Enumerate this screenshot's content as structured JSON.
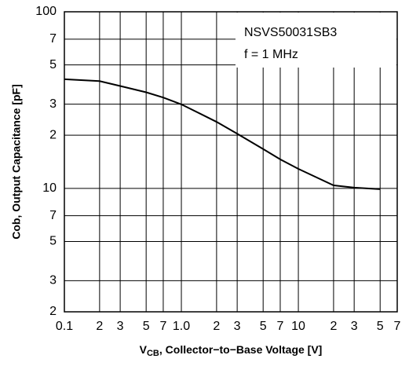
{
  "chart_data": {
    "type": "line",
    "xlabel": {
      "base": "V",
      "sub": "CB",
      "rest": ", Collector−to−Base Voltage [V]"
    },
    "ylabel": "Cob, Output Capacitance [pF]",
    "annotations": [
      "NSVS50031SB3",
      "f = 1 MHz"
    ],
    "x": [
      0.1,
      0.2,
      0.3,
      0.5,
      0.7,
      1,
      2,
      3,
      5,
      7,
      10,
      20,
      30,
      50
    ],
    "values": [
      41.5,
      40.5,
      38,
      35,
      32.7,
      29.9,
      23.8,
      20.4,
      16.7,
      14.6,
      12.9,
      10.4,
      10.1,
      9.9
    ],
    "color": "#000000",
    "xscale": "log",
    "yscale": "log",
    "grid": true,
    "xlim": [
      0.1,
      70
    ],
    "ylim": [
      2,
      100
    ],
    "xticks": [
      0.1,
      {
        "value": 0.2,
        "label": "2"
      },
      {
        "value": 0.3,
        "label": "3"
      },
      {
        "value": 0.5,
        "label": "5"
      },
      {
        "value": 0.7,
        "label": "7"
      },
      {
        "value": 1,
        "label": "1.0"
      },
      2,
      3,
      5,
      7,
      10,
      {
        "value": 20,
        "label": "2"
      },
      {
        "value": 30,
        "label": "3"
      },
      {
        "value": 50,
        "label": "5"
      },
      {
        "value": 70,
        "label": "7"
      }
    ],
    "yticks": [
      2,
      3,
      5,
      7,
      10,
      {
        "value": 20,
        "label": "2"
      },
      {
        "value": 30,
        "label": "3"
      },
      {
        "value": 50,
        "label": "5"
      },
      {
        "value": 70,
        "label": "7"
      },
      100
    ]
  }
}
